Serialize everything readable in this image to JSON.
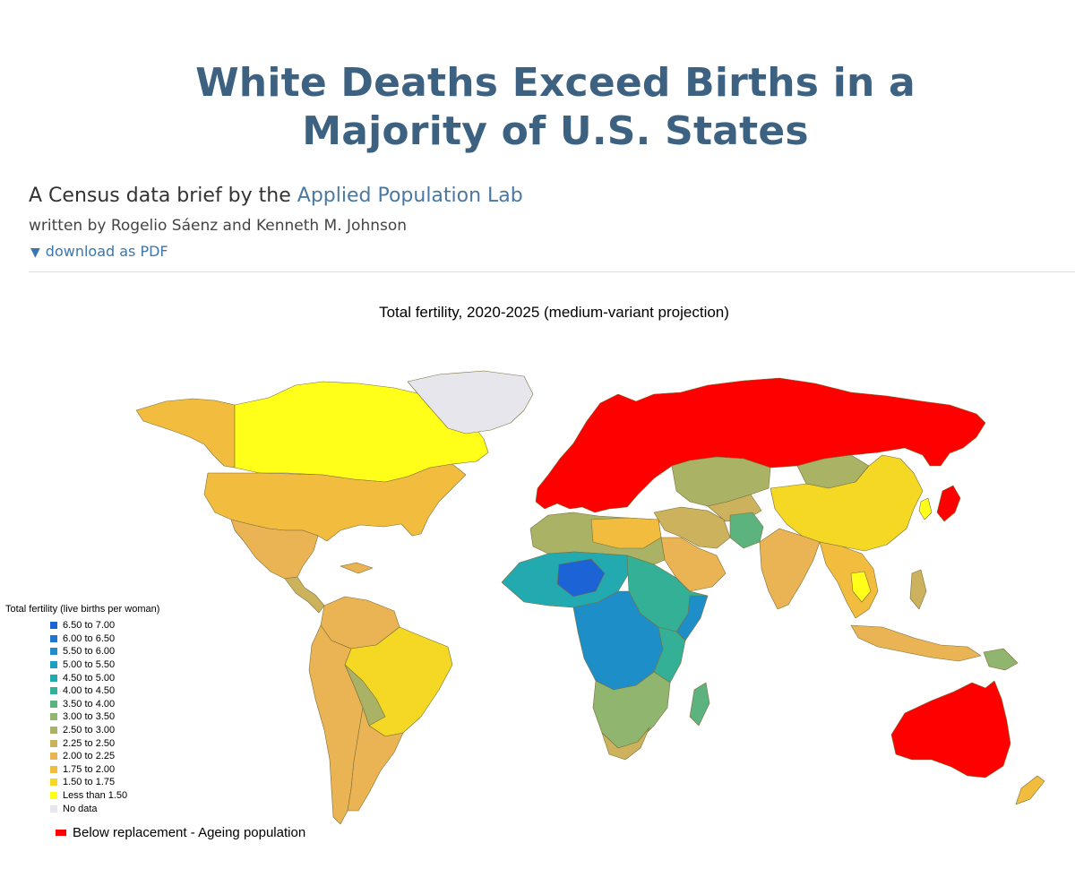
{
  "article": {
    "headline_line1": "White Deaths Exceed Births in a",
    "headline_line2": "Majority of U.S. States",
    "subtitle_prefix": "A Census data brief by the ",
    "subtitle_link": "Applied Population Lab",
    "byline": "written by Rogelio Sáenz and Kenneth M. Johnson",
    "download_icon": "chevron-down-icon",
    "download_label": "download as PDF"
  },
  "map": {
    "title": "Total fertility, 2020-2025 (medium-variant projection)",
    "legend_title": "Total fertility (live births per woman)",
    "legend": [
      {
        "label": "6.50 to 7.00",
        "color": "#1c63d6"
      },
      {
        "label": "6.00 to 6.50",
        "color": "#1f76d1"
      },
      {
        "label": "5.50 to 6.00",
        "color": "#1e8ec8"
      },
      {
        "label": "5.00 to 5.50",
        "color": "#1c9fc2"
      },
      {
        "label": "4.50 to 5.00",
        "color": "#22aab0"
      },
      {
        "label": "4.00 to 4.50",
        "color": "#34b097"
      },
      {
        "label": "3.50 to 4.00",
        "color": "#5cb37e"
      },
      {
        "label": "3.00 to 3.50",
        "color": "#8fb56e"
      },
      {
        "label": "2.50 to 3.00",
        "color": "#aab266"
      },
      {
        "label": "2.25 to 2.50",
        "color": "#cdb25e"
      },
      {
        "label": "2.00 to 2.25",
        "color": "#eab354"
      },
      {
        "label": "1.75 to 2.00",
        "color": "#f2bc3f"
      },
      {
        "label": "1.50 to 1.75",
        "color": "#f5d824"
      },
      {
        "label": "Less than 1.50",
        "color": "#ffff19"
      },
      {
        "label": "No data",
        "color": "#e6e6ec"
      }
    ],
    "overlay_label": "Below replacement - Ageing population",
    "overlay_color": "#ff0000"
  }
}
